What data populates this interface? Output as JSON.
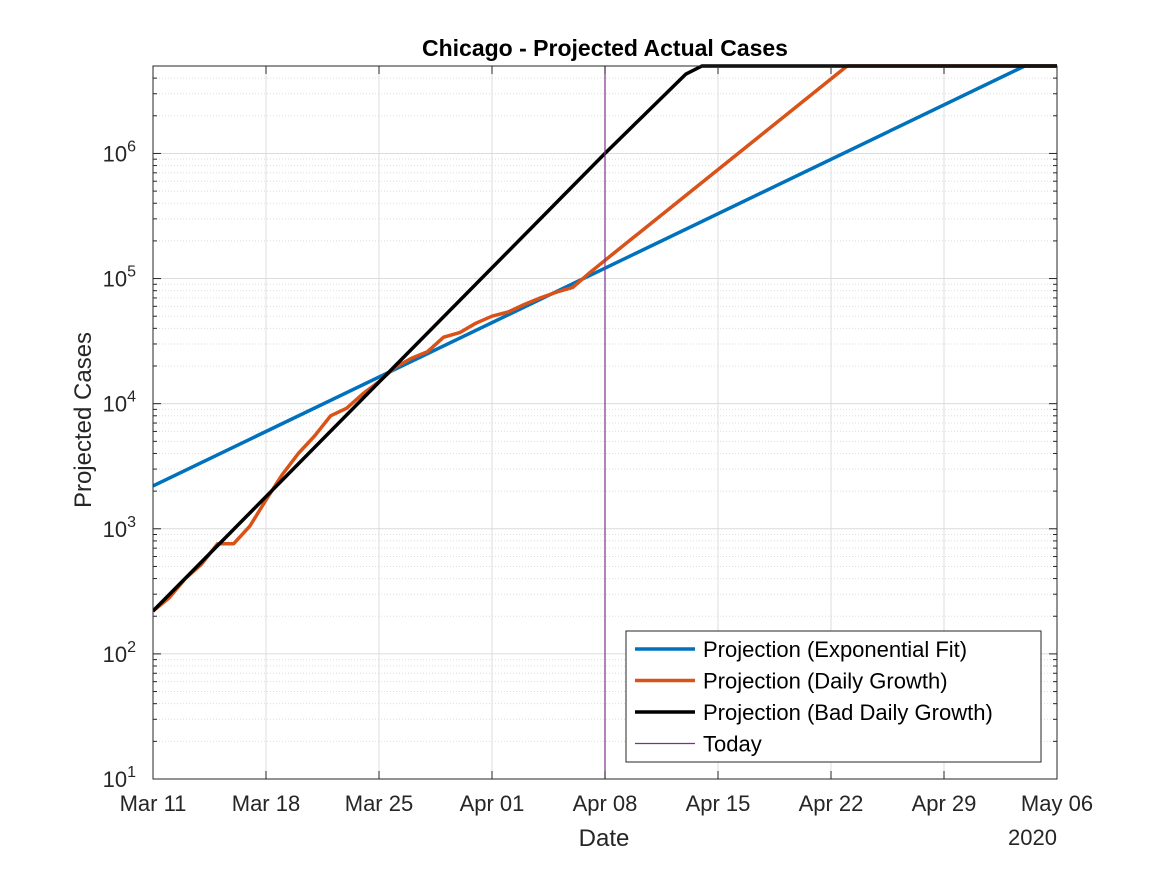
{
  "chart_data": {
    "type": "line",
    "title": "Chicago - Projected Actual Cases",
    "xlabel": "Date",
    "ylabel": "Projected Cases",
    "x_axis_secondary_label": "2020",
    "x_scale": "date",
    "xlim": [
      "2020-03-11",
      "2020-05-06"
    ],
    "x_ticks": [
      {
        "date": "2020-03-11",
        "label": "Mar 11"
      },
      {
        "date": "2020-03-18",
        "label": "Mar 18"
      },
      {
        "date": "2020-03-25",
        "label": "Mar 25"
      },
      {
        "date": "2020-04-01",
        "label": "Apr 01"
      },
      {
        "date": "2020-04-08",
        "label": "Apr 08"
      },
      {
        "date": "2020-04-15",
        "label": "Apr 15"
      },
      {
        "date": "2020-04-22",
        "label": "Apr 22"
      },
      {
        "date": "2020-04-29",
        "label": "Apr 29"
      },
      {
        "date": "2020-05-06",
        "label": "May 06"
      }
    ],
    "y_scale": "log",
    "ylim": [
      10,
      5000000
    ],
    "y_ticks": [
      {
        "value": 10,
        "base": "10",
        "exp": "1"
      },
      {
        "value": 100,
        "base": "10",
        "exp": "2"
      },
      {
        "value": 1000,
        "base": "10",
        "exp": "3"
      },
      {
        "value": 10000,
        "base": "10",
        "exp": "4"
      },
      {
        "value": 100000,
        "base": "10",
        "exp": "5"
      },
      {
        "value": 1000000,
        "base": "10",
        "exp": "6"
      }
    ],
    "grid": true,
    "minor_grid": true,
    "legend_position": "bottom-right",
    "series": [
      {
        "name": "Projection (Exponential Fit)",
        "color": "#0072BD",
        "x": [
          "2020-03-11",
          "2020-05-04",
          "2020-05-06"
        ],
        "y": [
          2200,
          5000000,
          5000000
        ]
      },
      {
        "name": "Projection (Daily Growth)",
        "color": "#D95319",
        "x": [
          "2020-03-11",
          "2020-03-12",
          "2020-03-13",
          "2020-03-14",
          "2020-03-15",
          "2020-03-16",
          "2020-03-17",
          "2020-03-18",
          "2020-03-19",
          "2020-03-20",
          "2020-03-21",
          "2020-03-22",
          "2020-03-23",
          "2020-03-24",
          "2020-03-25",
          "2020-03-26",
          "2020-03-27",
          "2020-03-28",
          "2020-03-29",
          "2020-03-30",
          "2020-03-31",
          "2020-04-01",
          "2020-04-02",
          "2020-04-03",
          "2020-04-04",
          "2020-04-05",
          "2020-04-06",
          "2020-04-07",
          "2020-04-08",
          "2020-04-23",
          "2020-05-06"
        ],
        "y": [
          220,
          280,
          400,
          520,
          760,
          760,
          1050,
          1700,
          2700,
          4000,
          5500,
          8000,
          9200,
          12000,
          15000,
          19500,
          23000,
          26000,
          34000,
          37000,
          44000,
          50000,
          54000,
          62000,
          70000,
          78000,
          85000,
          110000,
          140000,
          5000000,
          5000000
        ]
      },
      {
        "name": "Projection (Bad Daily Growth)",
        "color": "#000000",
        "x": [
          "2020-03-11",
          "2020-04-08",
          "2020-04-13",
          "2020-04-14",
          "2020-05-06"
        ],
        "y": [
          220,
          1000000,
          4300000,
          5000000,
          5000000
        ]
      }
    ],
    "reference_lines": [
      {
        "name": "Today",
        "date": "2020-04-08",
        "color": "#7E2F8E"
      }
    ]
  }
}
